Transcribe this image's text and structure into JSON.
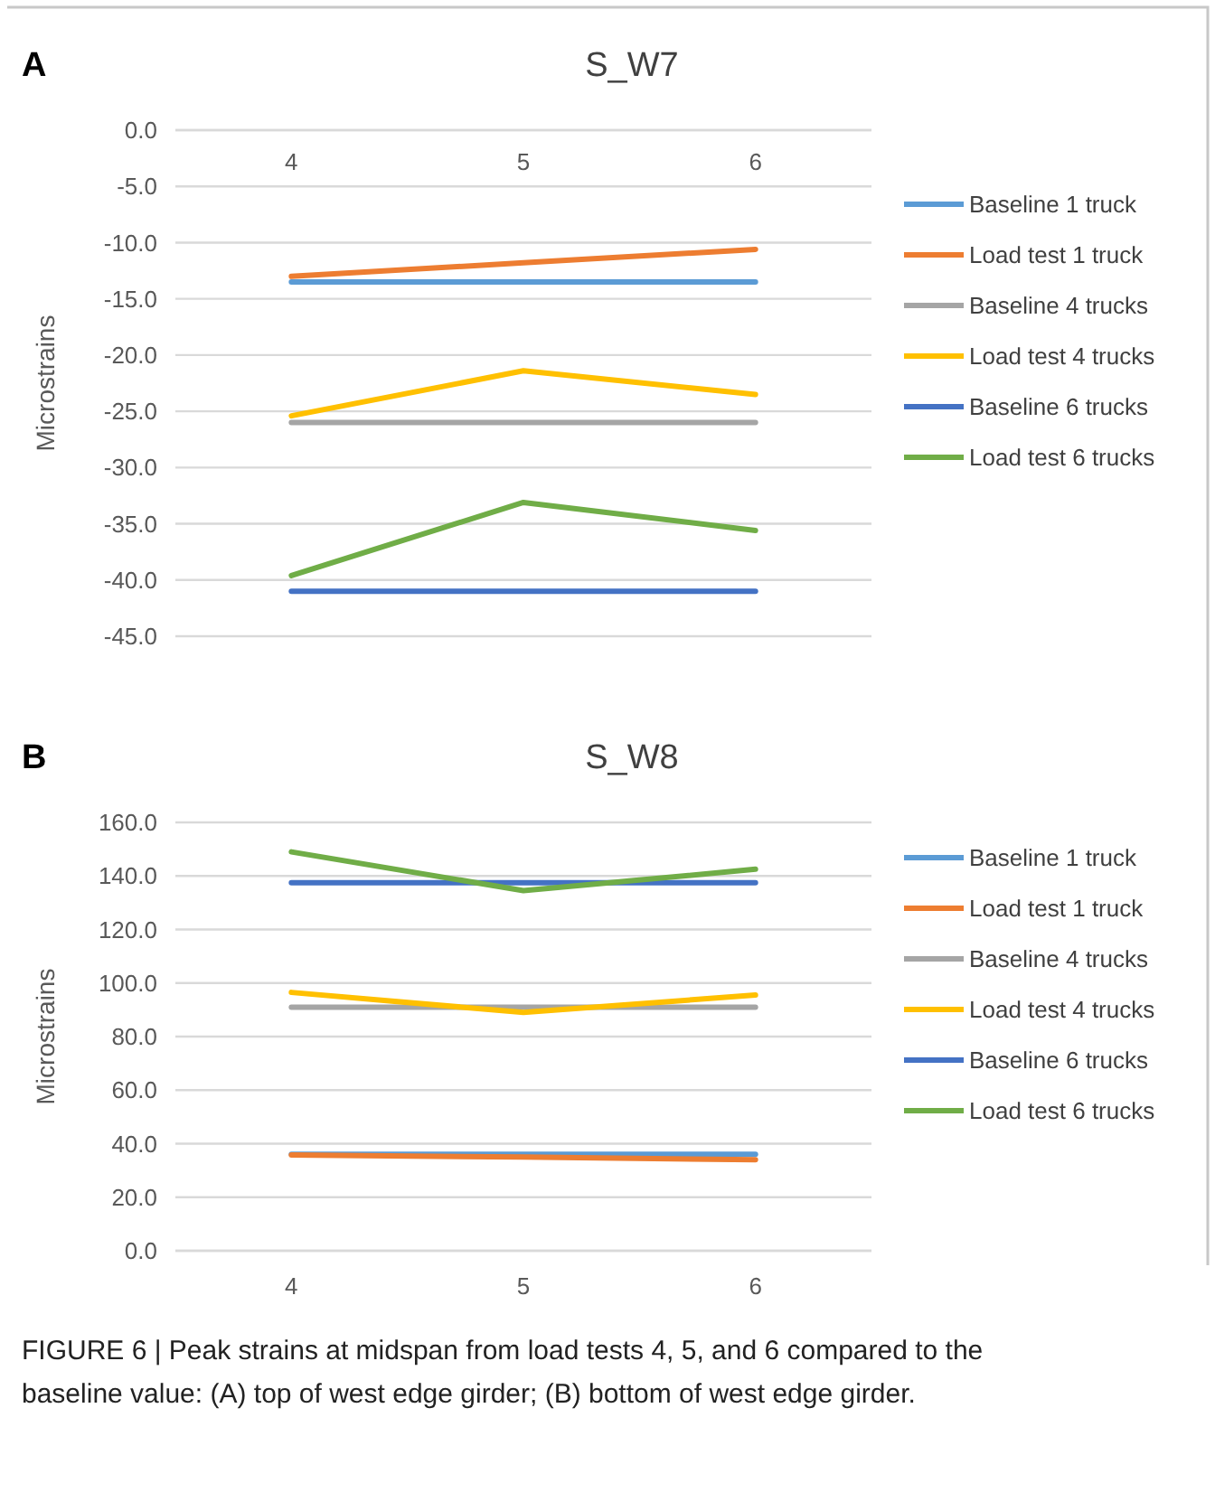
{
  "chart_data": [
    {
      "type": "line",
      "title": "S_W7",
      "ylabel": "Microstrains",
      "categories": [
        "4",
        "5",
        "6"
      ],
      "ylim": [
        -45,
        0
      ],
      "yticks": [
        {
          "value": 0,
          "label": "0.0"
        },
        {
          "value": -5,
          "label": "-5.0"
        },
        {
          "value": -10,
          "label": "-10.0"
        },
        {
          "value": -15,
          "label": "-15.0"
        },
        {
          "value": -20,
          "label": "-20.0"
        },
        {
          "value": -25,
          "label": "-25.0"
        },
        {
          "value": -30,
          "label": "-30.0"
        },
        {
          "value": -35,
          "label": "-35.0"
        },
        {
          "value": -40,
          "label": "-40.0"
        },
        {
          "value": -45,
          "label": "-45.0"
        }
      ],
      "grid": "y",
      "legend": "right",
      "marker": "none",
      "annotations": [
        "A"
      ],
      "series": [
        {
          "name": "Baseline 1 truck",
          "color": "#5b9bd5",
          "values": [
            -13.5,
            -13.5,
            -13.5
          ]
        },
        {
          "name": "Load test 1 truck",
          "color": "#ed7d31",
          "values": [
            -13.0,
            -11.8,
            -10.6
          ]
        },
        {
          "name": "Baseline 4 trucks",
          "color": "#a5a5a5",
          "values": [
            -26.0,
            -26.0,
            -26.0
          ]
        },
        {
          "name": "Load test 4 trucks",
          "color": "#ffc000",
          "values": [
            -25.4,
            -21.4,
            -23.5
          ]
        },
        {
          "name": "Baseline 6 trucks",
          "color": "#4472c4",
          "values": [
            -41.0,
            -41.0,
            -41.0
          ]
        },
        {
          "name": "Load test 6 trucks",
          "color": "#70ad47",
          "values": [
            -39.6,
            -33.1,
            -35.6
          ]
        }
      ]
    },
    {
      "type": "line",
      "title": "S_W8",
      "ylabel": "Microstrains",
      "categories": [
        "4",
        "5",
        "6"
      ],
      "ylim": [
        0,
        160
      ],
      "yticks": [
        {
          "value": 0,
          "label": "0.0"
        },
        {
          "value": 20,
          "label": "20.0"
        },
        {
          "value": 40,
          "label": "40.0"
        },
        {
          "value": 60,
          "label": "60.0"
        },
        {
          "value": 80,
          "label": "80.0"
        },
        {
          "value": 100,
          "label": "100.0"
        },
        {
          "value": 120,
          "label": "120.0"
        },
        {
          "value": 140,
          "label": "140.0"
        },
        {
          "value": 160,
          "label": "160.0"
        }
      ],
      "grid": "y",
      "legend": "right",
      "marker": "none",
      "annotations": [
        "B",
        "FIGURE 6 | Peak strains at midspan from load tests 4, 5, and 6 compared to the baseline value: (A) top of west edge girder; (B) bottom of west edge girder."
      ],
      "series": [
        {
          "name": "Baseline 1 truck",
          "color": "#5b9bd5",
          "values": [
            36,
            36,
            36
          ]
        },
        {
          "name": "Load test 1 truck",
          "color": "#ed7d31",
          "values": [
            35.8,
            35,
            34
          ]
        },
        {
          "name": "Baseline 4 trucks",
          "color": "#a5a5a5",
          "values": [
            91,
            91,
            91
          ]
        },
        {
          "name": "Load test 4 trucks",
          "color": "#ffc000",
          "values": [
            96.5,
            89,
            95.5
          ]
        },
        {
          "name": "Baseline 6 trucks",
          "color": "#4472c4",
          "values": [
            137.5,
            137.5,
            137.5
          ]
        },
        {
          "name": "Load test 6 trucks",
          "color": "#70ad47",
          "values": [
            149,
            134.5,
            142.5
          ]
        }
      ]
    }
  ]
}
